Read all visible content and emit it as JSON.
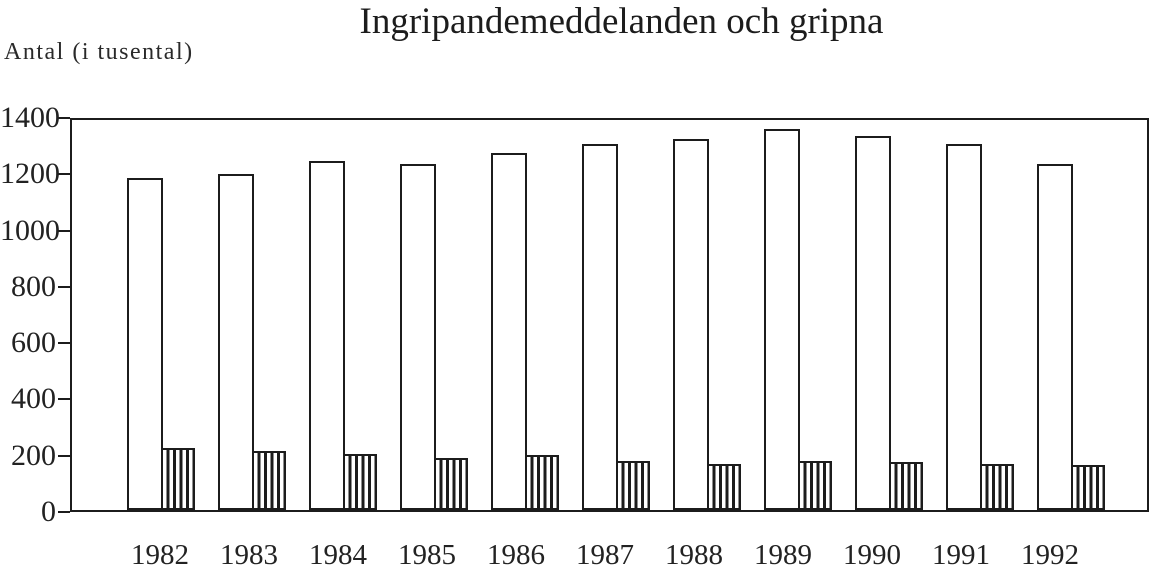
{
  "chart_data": {
    "type": "bar",
    "title": "Ingripandemeddelanden och gripna",
    "ylabel": "Antal (i tusental)",
    "xlabel": "",
    "categories": [
      "1982",
      "1983",
      "1984",
      "1985",
      "1986",
      "1987",
      "1988",
      "1989",
      "1990",
      "1991",
      "1992"
    ],
    "series": [
      {
        "name": "Ingripandemeddelanden",
        "style": "solid-white",
        "values": [
          1180,
          1195,
          1240,
          1230,
          1270,
          1300,
          1320,
          1355,
          1330,
          1300,
          1230
        ]
      },
      {
        "name": "Gripna",
        "style": "vertical-hatch",
        "values": [
          220,
          210,
          200,
          185,
          195,
          175,
          165,
          175,
          170,
          165,
          160
        ]
      }
    ],
    "ylim": [
      0,
      1400
    ],
    "yticks": [
      0,
      200,
      400,
      600,
      800,
      1000,
      1200,
      1400
    ],
    "grid": false,
    "legend": "none",
    "frame": "full-border"
  },
  "colors": {
    "line": "#1c1c1c",
    "background": "#ffffff"
  }
}
